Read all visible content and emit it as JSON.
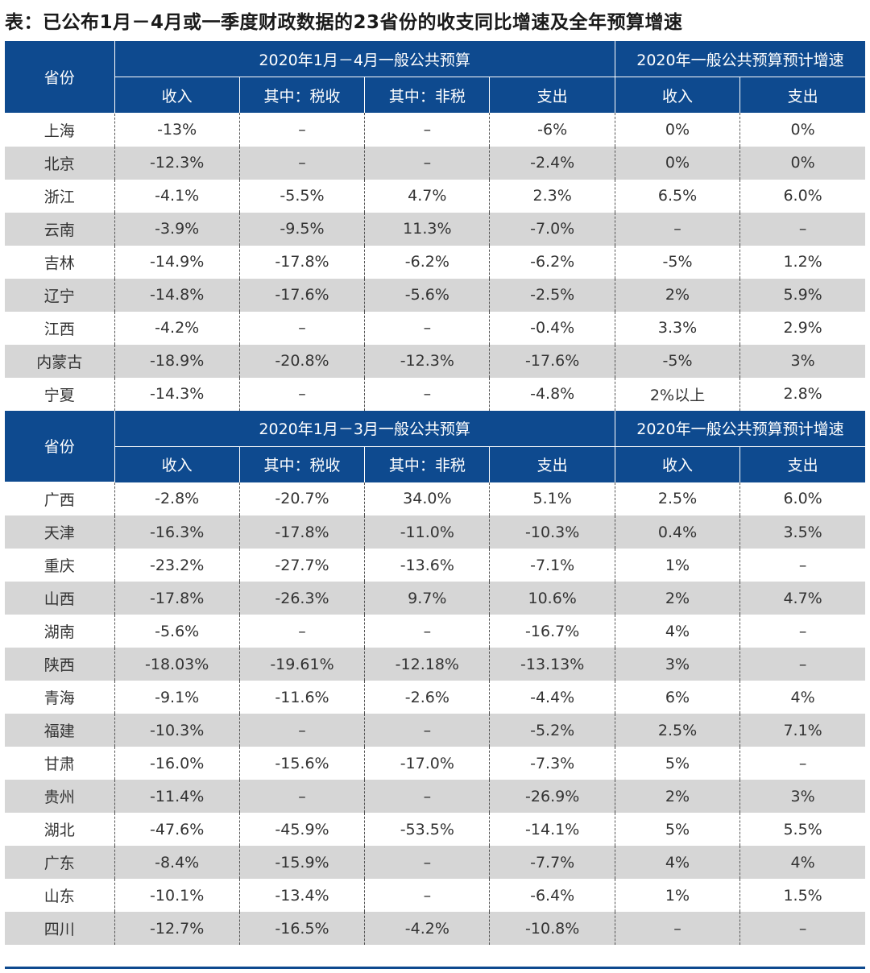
{
  "title": "表：已公布1月－4月或一季度财政数据的23省份的收支同比增速及全年预算增速",
  "colors": {
    "header_bg": "#0e4a8f",
    "alt_row_bg": "#d6d6d6",
    "text": "#333333"
  },
  "section1": {
    "province_header": "省份",
    "group1_header": "2020年1月－4月一般公共预算",
    "group2_header": "2020年一般公共预算预计增速",
    "subheaders": [
      "收入",
      "其中：税收",
      "其中：非税",
      "支出",
      "收入",
      "支出"
    ],
    "rows": [
      [
        "上海",
        "-13%",
        "–",
        "–",
        "-6%",
        "0%",
        "0%"
      ],
      [
        "北京",
        "-12.3%",
        "–",
        "–",
        "-2.4%",
        "0%",
        "0%"
      ],
      [
        "浙江",
        "-4.1%",
        "-5.5%",
        "4.7%",
        "2.3%",
        "6.5%",
        "6.0%"
      ],
      [
        "云南",
        "-3.9%",
        "-9.5%",
        "11.3%",
        "-7.0%",
        "–",
        "–"
      ],
      [
        "吉林",
        "-14.9%",
        "-17.8%",
        "-6.2%",
        "-6.2%",
        "-5%",
        "1.2%"
      ],
      [
        "辽宁",
        "-14.8%",
        "-17.6%",
        "-5.6%",
        "-2.5%",
        "2%",
        "5.9%"
      ],
      [
        "江西",
        "-4.2%",
        "–",
        "–",
        "-0.4%",
        "3.3%",
        "2.9%"
      ],
      [
        "内蒙古",
        "-18.9%",
        "-20.8%",
        "-12.3%",
        "-17.6%",
        "-5%",
        "3%"
      ],
      [
        "宁夏",
        "-14.3%",
        "–",
        "–",
        "-4.8%",
        "2%以上",
        "2.8%"
      ]
    ]
  },
  "section2": {
    "province_header": "省份",
    "group1_header": "2020年1月－3月一般公共预算",
    "group2_header": "2020年一般公共预算预计增速",
    "subheaders": [
      "收入",
      "其中：税收",
      "其中：非税",
      "支出",
      "收入",
      "支出"
    ],
    "rows": [
      [
        "广西",
        "-2.8%",
        "-20.7%",
        "34.0%",
        "5.1%",
        "2.5%",
        "6.0%"
      ],
      [
        "天津",
        "-16.3%",
        "-17.8%",
        "-11.0%",
        "-10.3%",
        "0.4%",
        "3.5%"
      ],
      [
        "重庆",
        "-23.2%",
        "-27.7%",
        "-13.6%",
        "-7.1%",
        "1%",
        "–"
      ],
      [
        "山西",
        "-17.8%",
        "-26.3%",
        "9.7%",
        "10.6%",
        "2%",
        "4.7%"
      ],
      [
        "湖南",
        "-5.6%",
        "–",
        "–",
        "-16.7%",
        "4%",
        "–"
      ],
      [
        "陕西",
        "-18.03%",
        "-19.61%",
        "-12.18%",
        "-13.13%",
        "3%",
        "–"
      ],
      [
        "青海",
        "-9.1%",
        "-11.6%",
        "-2.6%",
        "-4.4%",
        "6%",
        "4%"
      ],
      [
        "福建",
        "-10.3%",
        "–",
        "–",
        "-5.2%",
        "2.5%",
        "7.1%"
      ],
      [
        "甘肃",
        "-16.0%",
        "-15.6%",
        "-17.0%",
        "-7.3%",
        "5%",
        "–"
      ],
      [
        "贵州",
        "-11.4%",
        "–",
        "–",
        "-26.9%",
        "2%",
        "3%"
      ],
      [
        "湖北",
        "-47.6%",
        "-45.9%",
        "-53.5%",
        "-14.1%",
        "5%",
        "5.5%"
      ],
      [
        "广东",
        "-8.4%",
        "-15.9%",
        "–",
        "-7.7%",
        "4%",
        "4%"
      ],
      [
        "山东",
        "-10.1%",
        "-13.4%",
        "–",
        "-6.4%",
        "1%",
        "1.5%"
      ],
      [
        "四川",
        "-12.7%",
        "-16.5%",
        "-4.2%",
        "-10.8%",
        "–",
        "–"
      ]
    ]
  }
}
